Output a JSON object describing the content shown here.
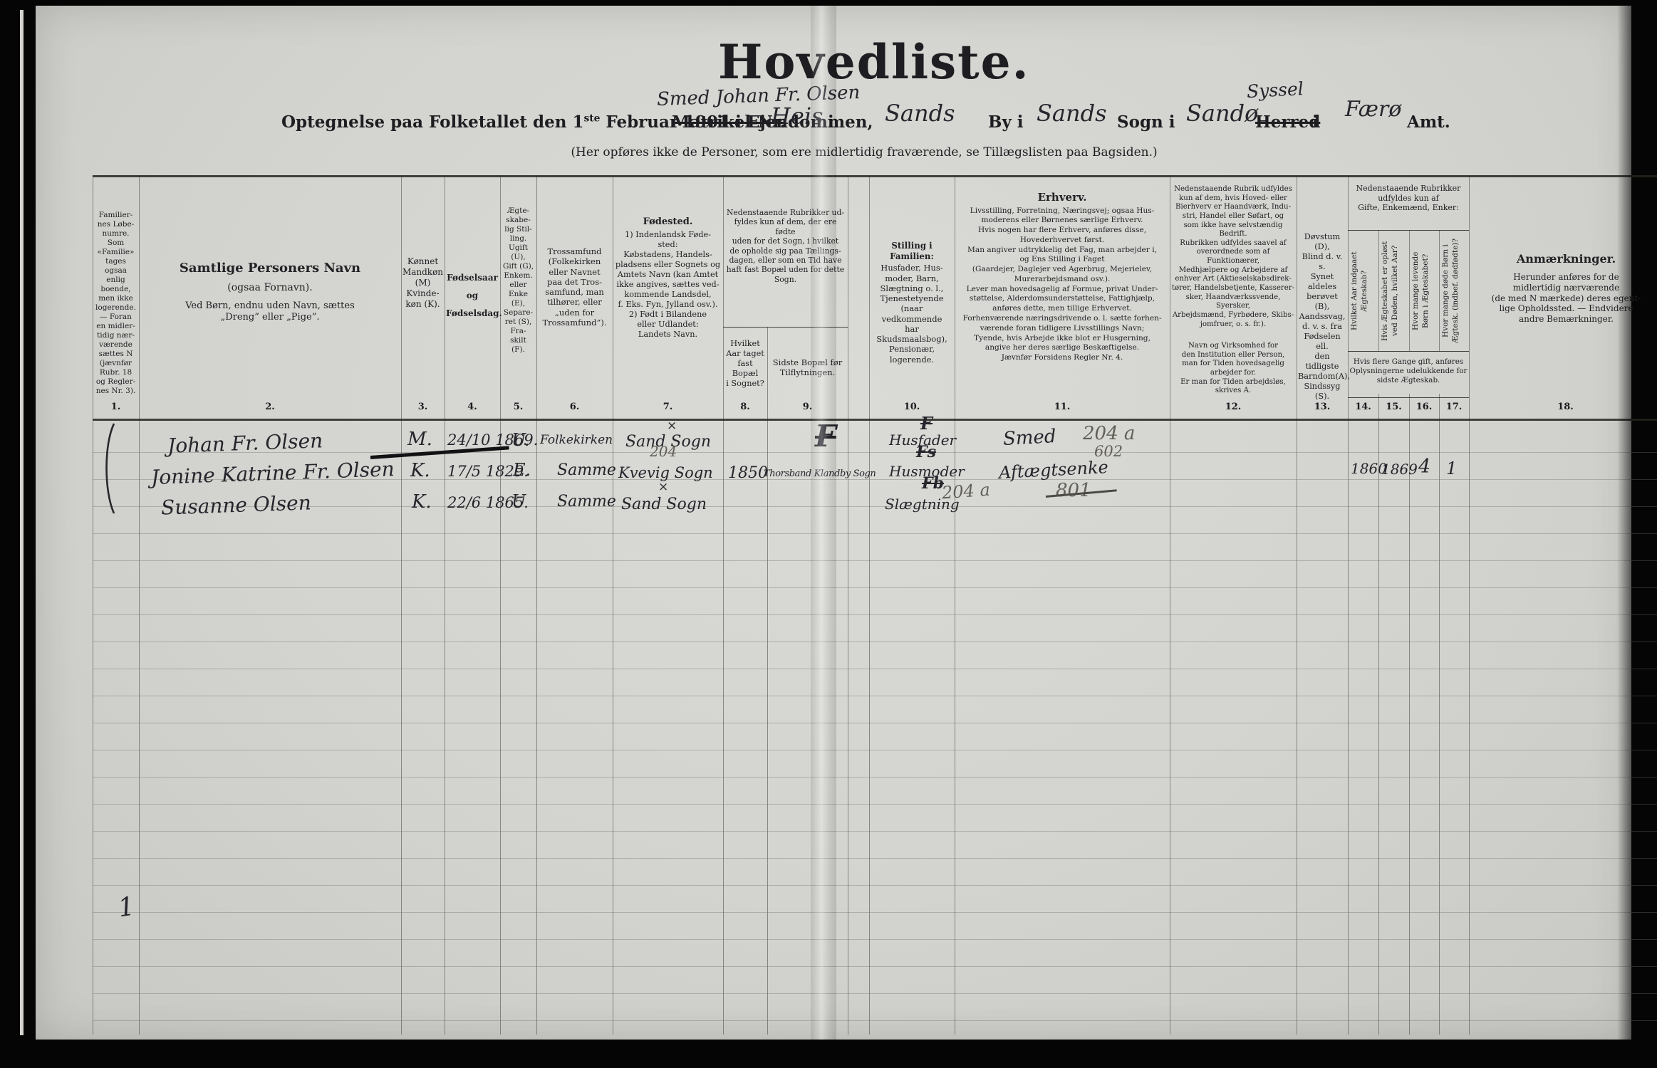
{
  "header": {
    "title": "Hovedliste.",
    "handwritten_owner": "Smed Johan Fr. Olsen",
    "line": {
      "p1": "Optegnelse paa Folketallet den 1",
      "sup": "ste",
      "p2": " Februar 1901 i Ejendommen,",
      "matrikel": "Matrikel-Nr.",
      "property": "Heis",
      "i1": "i",
      "by": "Sands",
      "by_label": "By i",
      "sogn": "Sands",
      "sogn_label": "Sogn i",
      "herred_hw": "Sandø",
      "syssel": "Syssel",
      "herred": "Herred",
      "i2": "i",
      "amt": "Færø",
      "amt_label": "Amt."
    },
    "note": "(Her opføres ikke de Personer, som ere midlertidig fraværende, se Tillægslisten paa Bagsiden.)"
  },
  "columns": {
    "c1": {
      "num": "1.",
      "text": "Familier-\nnes Løbe-\nnumre.\nSom\n«Familie»\ntages ogsaa\nenlig\nboende,\nmen ikke\nlogerende.\n— Foran\nen midler-\ntidig nær-\nværende\nsættes N\n(jævnfør\nRubr. 18\nog Regler-\nnes Nr. 3)."
    },
    "c2": {
      "num": "2.",
      "title": "Samtlige Personers Navn",
      "sub": "(ogsaa Fornavn).",
      "note": "Ved Børn, endnu uden Navn, sættes\n„Dreng” eller „Pige”."
    },
    "c3": {
      "num": "3.",
      "text": "Kønnet\nMandkøn\n(M)\nKvinde-\nkøn (K)."
    },
    "c4": {
      "num": "4.",
      "text": "Fødselsaar\nog\nFødselsdag."
    },
    "c5": {
      "num": "5.",
      "text": "Ægte-\nskabe-\nlig Stil-\nling.\nUgift\n(U),\nGift (G),\nEnkem.\neller\nEnke\n(E),\nSepare-\nret (S),\nFra-\nskilt\n(F)."
    },
    "c6": {
      "num": "6.",
      "text": "Trossamfund\n(Folkekirken\neller Navnet\npaa det Tros-\nsamfund, man\ntilhører, eller\n„uden for\nTrossamfund”)."
    },
    "c7": {
      "num": "7.",
      "title": "Fødested.",
      "text": "1) Indenlandsk Føde-\nsted:\nKøbstadens, Handels-\npladsens eller Sognets og\nAmtets Navn (kan Amtet\nikke angives, sættes ved-\nkommende Landsdel,\nf. Eks. Fyn, Jylland osv.).\n2) Født i Bilandene\neller Udlandet:\nLandets Navn."
    },
    "c8_9": {
      "group": "Nedenstaaende Rubrikker ud-\nfyldes kun af dem, der ere fødte\nuden for det Sogn, i hvilket\nde opholde sig paa Tællings-\ndagen, eller som en Tid have\nhaft fast Bopæl uden for dette\nSogn."
    },
    "c8": {
      "num": "8.",
      "text": "Hvilket\nAar taget\nfast Bopæl\ni Sognet?"
    },
    "c9": {
      "num": "9.",
      "text": "Sidste Bopæl før\nTilflytningen."
    },
    "c10": {
      "num": "10.",
      "title": "Stilling i Familien:",
      "text": "Husfader, Hus-\nmoder, Barn,\nSlægtning o. l.,\nTjenestetyende\n(naar vedkommende\nhar Skudsmaalsbog),\nPensionær,\nlogerende."
    },
    "c11": {
      "num": "11.",
      "title": "Erhverv.",
      "text": "Livsstilling, Forretning, Næringsvej; ogsaa Hus-\nmoderens eller Børnenes særlige Erhverv.\nHvis nogen har flere Erhverv, anføres disse,\nHovederhvervet først.\nMan angiver udtrykkelig det Fag, man arbejder i,\nog Ens Stilling i Faget\n(Gaardejer, Daglejer ved Agerbrug, Mejerielev,\nMurerarbejdsmand osv.).\nLever man hovedsagelig af Formue, privat Under-\nstøttelse, Alderdomsunderstøttelse, Fattighjælp,\nanføres dette, men tillige Erhvervet.\nForhenværende næringsdrivende o. l. sætte forhen-\nværende foran tidligere Livsstillings Navn;\nTyende, hvis Arbejde ikke blot er Husgerning,\nangive her deres særlige Beskæftigelse.\nJævnfør Forsidens Regler Nr. 4."
    },
    "c12": {
      "num": "12.",
      "text1": "Nedenstaaende Rubrik udfyldes\nkun af dem, hvis Hoved- eller\nBierhverv er Haandværk, Indu-\nstri, Handel eller Søfart, og\nsom ikke have selvstændig\nBedrift.\nRubrikken udfyldes saavel af\noverordnede som af Funktionærer,\nMedhjælpere og Arbejdere af\nenhver Art (Aktieselskabsdirek-\ntører, Handelsbetjente, Kasserer-\nsker, Haandværkssvende, Syersker,\nArbejdsmænd, Fyrbødere, Skibs-\njomfruer, o. s. fr.).",
      "text2": "Navn og Virksomhed for\nden Institution eller Person,\nman for Tiden hovedsagelig\narbejder for.\nEr man for Tiden arbejdsløs,\nskrives A."
    },
    "c13": {
      "num": "13.",
      "text": "Døvstum (D),\nBlind d. v. s.\nSynet aldeles\nberøvet (B),\nAandssvag,\nd. v. s. fra\nFødselen ell.\nden tidligste\nBarndom(A),\nSindssyg (S)."
    },
    "c14_17": {
      "group": "Nedenstaaende Rubrikker\nudfyldes kun af\nGifte, Enkemænd, Enker:",
      "footer": "Hvis flere Gange gift, anføres\nOplysningerne udelukkende for\nsidste Ægteskab."
    },
    "c14": {
      "num": "14.",
      "text": "Hvilket Aar indgaaet\nÆgteskab?"
    },
    "c15": {
      "num": "15.",
      "text": "Hvis Ægteskabet er opløst\nved Døden, hvilket Aar?"
    },
    "c16": {
      "num": "16.",
      "text": "Hvor mange levende\nBørn i Ægteskabet?"
    },
    "c17": {
      "num": "17.",
      "text": "Hvor mange døde Børn i\nÆgtesk. (indbef. dødfødte)?"
    },
    "c18": {
      "num": "18.",
      "title": "Anmærkninger.",
      "text": "Herunder anføres for de\nmidlertidig nærværende\n(de med N mærkede) deres egent-\nlige Opholdssted. — Endvidere\nandre Bemærkninger."
    }
  },
  "rows": [
    {
      "name": "Johan Fr. Olsen",
      "sex": "M.",
      "birth": "24/10 1869.",
      "marital": "U.",
      "faith": "Folkekirken",
      "birthplace": "Sand Sogn",
      "birthplace_mark": "×",
      "position": "Husfader",
      "position_mark": "F",
      "occupation": "Smed",
      "pencil_code": "204 a"
    },
    {
      "name": "Jonine Katrine Fr. Olsen",
      "sex": "K.",
      "birth": "17/5 1829.",
      "marital": "E.",
      "faith": "Samme",
      "birthplace": "Kvevig Sogn",
      "birthplace_mark": "204",
      "settled_year": "1850",
      "last_residence": "Thorsband Klandby Sogn",
      "position": "Husmoder",
      "position_mark": "Fs",
      "pencil_code": "602",
      "occupation": "Aftægtsenke",
      "marriage_year": "1860",
      "dissolved_year": "1869",
      "children_alive": "4",
      "children_dead": "1"
    },
    {
      "name": "Susanne Olsen",
      "sex": "K.",
      "birth": "22/6 1865.",
      "marital": "U",
      "faith": "Samme",
      "birthplace": "Sand Sogn",
      "birthplace_mark": "×",
      "position": "Slægtning",
      "position_mark": "Fb",
      "pencil_code": "204 a",
      "occupation_struck": "801"
    }
  ],
  "annotations": {
    "tally_large": "F",
    "margin_mark": "1"
  }
}
